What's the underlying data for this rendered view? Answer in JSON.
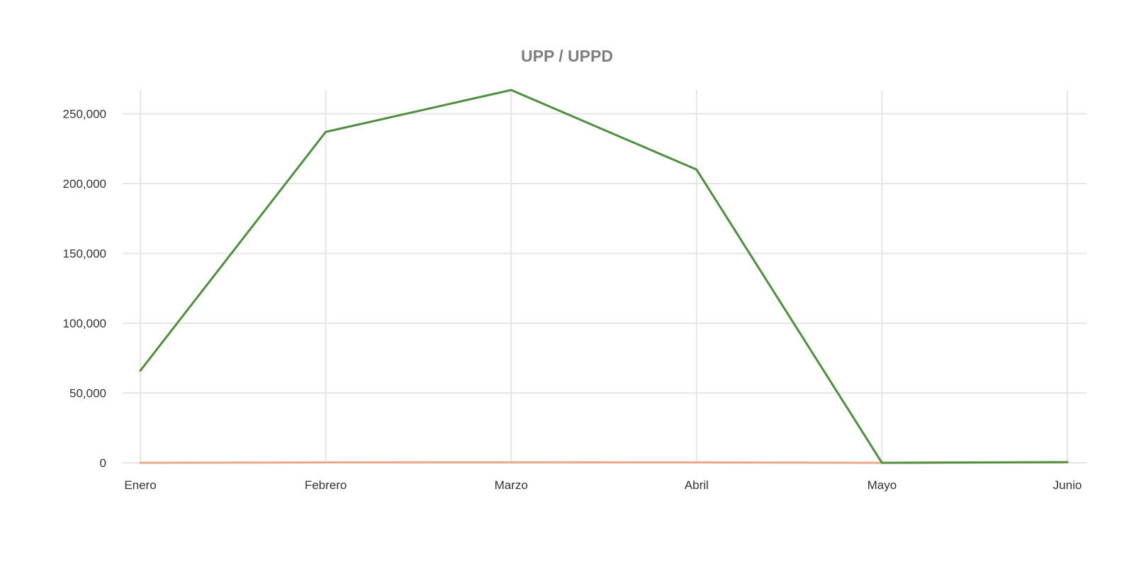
{
  "chart_data": {
    "type": "line",
    "title": "UPP / UPPD",
    "xlabel": "",
    "ylabel": "",
    "categories": [
      "Enero",
      "Febrero",
      "Marzo",
      "Abril",
      "Mayo",
      "Junio"
    ],
    "series": [
      {
        "color": "#e8a98a",
        "values": [
          0,
          300,
          400,
          300,
          0,
          300
        ]
      },
      {
        "color": "#4f8f3f",
        "values": [
          66000,
          237000,
          267000,
          210000,
          0,
          500
        ]
      }
    ],
    "ylim": [
      0,
      267000
    ],
    "yticks": [
      0,
      50000,
      100000,
      150000,
      200000,
      250000
    ],
    "ytick_labels": [
      "0",
      "50,000",
      "100,000",
      "150,000",
      "200,000",
      "250,000"
    ],
    "grid": true,
    "legend": "none"
  }
}
